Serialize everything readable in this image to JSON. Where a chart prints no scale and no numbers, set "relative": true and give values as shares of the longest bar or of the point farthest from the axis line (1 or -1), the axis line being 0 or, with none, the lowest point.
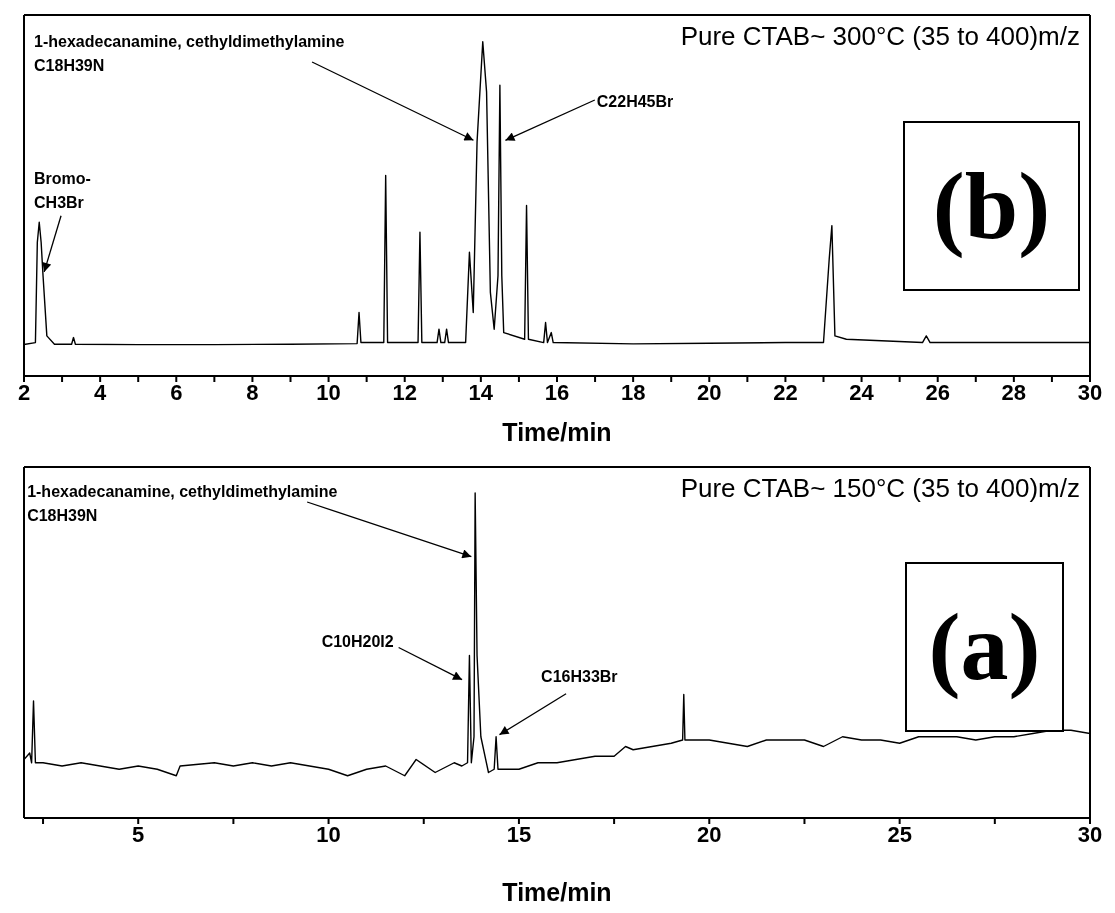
{
  "chart_data": [
    {
      "type": "line",
      "title": "Pure CTAB~ 300°C (35 to 400)m/z",
      "xlabel": "Time/min",
      "relative": true,
      "tick_labels": "x",
      "marker": "none",
      "line_style": "solid",
      "xlim": [
        2,
        30
      ],
      "xticks": [
        2,
        {
          "value": 3,
          "label": null
        },
        4,
        {
          "value": 5,
          "label": null
        },
        6,
        {
          "value": 7,
          "label": null
        },
        8,
        {
          "value": 9,
          "label": null
        },
        10,
        {
          "value": 11,
          "label": null
        },
        12,
        {
          "value": 13,
          "label": null
        },
        14,
        {
          "value": 15,
          "label": null
        },
        16,
        {
          "value": 17,
          "label": null
        },
        18,
        {
          "value": 19,
          "label": null
        },
        20,
        {
          "value": 21,
          "label": null
        },
        22,
        {
          "value": 23,
          "label": null
        },
        24,
        {
          "value": 25,
          "label": null
        },
        26,
        {
          "value": 27,
          "label": null
        },
        28,
        {
          "value": 29,
          "label": null
        },
        30
      ],
      "series": [
        {
          "color": "#000000",
          "x": [
            2.0,
            2.3,
            2.35,
            2.4,
            2.45,
            2.5,
            2.6,
            2.8,
            3.25,
            3.3,
            3.35,
            5,
            7,
            9,
            10.75,
            10.8,
            10.85,
            11.45,
            11.5,
            11.55,
            12.35,
            12.4,
            12.45,
            12.85,
            12.9,
            12.95,
            13.05,
            13.1,
            13.15,
            13.6,
            13.7,
            13.8,
            13.9,
            14.05,
            14.15,
            14.25,
            14.35,
            14.45,
            14.5,
            14.55,
            14.6,
            15.15,
            15.2,
            15.25,
            15.65,
            15.7,
            15.75,
            15.85,
            15.9,
            18,
            20,
            22,
            23.0,
            23.15,
            23.22,
            23.3,
            23.6,
            25.6,
            25.7,
            25.8,
            28,
            30
          ],
          "values": [
            0.094,
            0.1,
            0.4,
            0.46,
            0.4,
            0.3,
            0.12,
            0.095,
            0.095,
            0.115,
            0.095,
            0.094,
            0.094,
            0.095,
            0.097,
            0.19,
            0.1,
            0.1,
            0.6,
            0.1,
            0.1,
            0.43,
            0.1,
            0.1,
            0.14,
            0.1,
            0.1,
            0.14,
            0.1,
            0.1,
            0.37,
            0.19,
            0.7,
            1.0,
            0.85,
            0.25,
            0.14,
            0.3,
            0.87,
            0.3,
            0.13,
            0.11,
            0.51,
            0.11,
            0.1,
            0.16,
            0.1,
            0.13,
            0.1,
            0.096,
            0.098,
            0.1,
            0.1,
            0.35,
            0.45,
            0.12,
            0.11,
            0.1,
            0.12,
            0.1,
            0.1,
            0.1
          ]
        }
      ],
      "annotations": [
        {
          "text": "Bromo-\nCH3Br",
          "x": 2.5,
          "y": 0.3
        },
        {
          "text": "1-hexadecanamine, cethyldimethylamine\nC18H39N",
          "x": 13.9,
          "y": 0.7
        },
        {
          "text": "C22H45Br",
          "x": 14.55,
          "y": 0.7
        },
        "(b)"
      ]
    },
    {
      "type": "line",
      "title": "Pure CTAB~ 150°C (35 to 400)m/z",
      "xlabel": "Time/min",
      "relative": true,
      "tick_labels": "x",
      "marker": "none",
      "line_style": "solid",
      "xlim": [
        2,
        30
      ],
      "xticks": [
        {
          "value": 2.5,
          "label": null
        },
        5,
        {
          "value": 7.5,
          "label": null
        },
        10,
        {
          "value": 12.5,
          "label": null
        },
        15,
        {
          "value": 17.5,
          "label": null
        },
        20,
        {
          "value": 22.5,
          "label": null
        },
        25,
        {
          "value": 27.5,
          "label": null
        },
        30
      ],
      "series": [
        {
          "color": "#000000",
          "x": [
            2.0,
            2.15,
            2.2,
            2.25,
            2.3,
            2.5,
            3.0,
            3.5,
            4.0,
            4.5,
            5.0,
            5.5,
            6.0,
            6.1,
            7.0,
            7.5,
            8.0,
            8.5,
            9.0,
            9.5,
            10.0,
            10.5,
            11.0,
            11.5,
            12.0,
            12.3,
            12.8,
            13.3,
            13.5,
            13.65,
            13.7,
            13.75,
            13.82,
            13.85,
            13.9,
            14.0,
            14.2,
            14.35,
            14.4,
            14.45,
            15.0,
            15.5,
            16.0,
            16.5,
            17.0,
            17.5,
            17.8,
            18.0,
            18.5,
            19.0,
            19.3,
            19.33,
            19.36,
            20.0,
            20.5,
            21.0,
            21.5,
            22.0,
            22.5,
            23.0,
            23.5,
            24.0,
            24.5,
            25.0,
            25.5,
            26.0,
            26.5,
            27.0,
            27.5,
            28.0,
            28.5,
            29.0,
            29.5,
            30.0
          ],
          "values": [
            0.18,
            0.2,
            0.17,
            0.36,
            0.17,
            0.17,
            0.16,
            0.17,
            0.16,
            0.15,
            0.16,
            0.15,
            0.13,
            0.16,
            0.17,
            0.16,
            0.17,
            0.16,
            0.17,
            0.16,
            0.15,
            0.13,
            0.15,
            0.16,
            0.13,
            0.18,
            0.14,
            0.17,
            0.16,
            0.17,
            0.5,
            0.17,
            0.25,
            1.0,
            0.5,
            0.25,
            0.14,
            0.15,
            0.25,
            0.15,
            0.15,
            0.17,
            0.17,
            0.18,
            0.19,
            0.19,
            0.22,
            0.21,
            0.22,
            0.23,
            0.24,
            0.38,
            0.24,
            0.24,
            0.23,
            0.22,
            0.24,
            0.24,
            0.24,
            0.22,
            0.25,
            0.24,
            0.24,
            0.23,
            0.25,
            0.25,
            0.25,
            0.24,
            0.25,
            0.25,
            0.26,
            0.27,
            0.27,
            0.26
          ]
        }
      ],
      "annotations": [
        {
          "text": "1-hexadecanamine, cethyldimethylamine\nC18H39N",
          "x": 13.85,
          "y": 0.8
        },
        {
          "text": "C10H20I2",
          "x": 13.6,
          "y": 0.42
        },
        {
          "text": "C16H33Br",
          "x": 14.4,
          "y": 0.25
        },
        "(a)"
      ]
    }
  ]
}
